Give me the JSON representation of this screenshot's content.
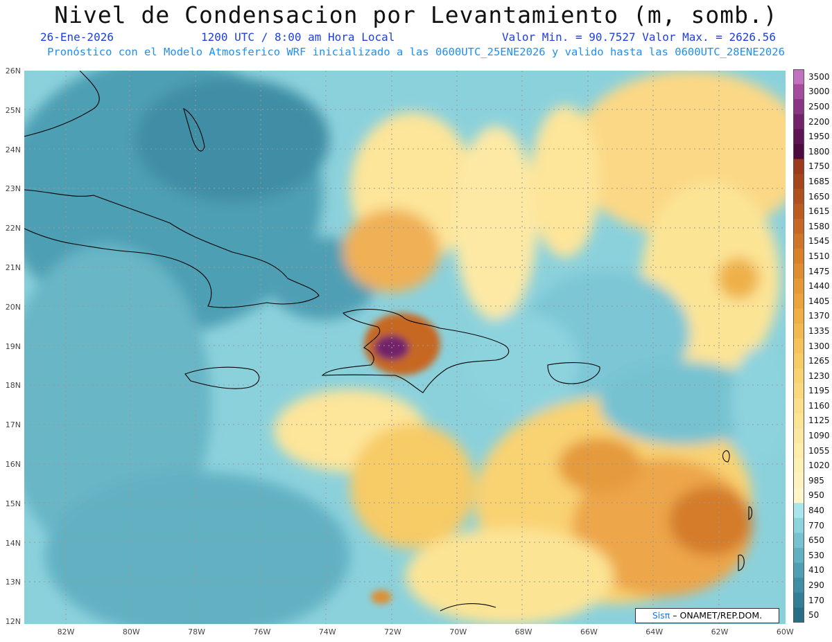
{
  "title": "Nivel de Condensacion por Levantamiento (m, somb.)",
  "date": "26-Ene-2026",
  "time": "1200 UTC / 8:00 am Hora Local",
  "minmax": "Valor Min. = 90.7527  Valor Max. = 2626.56",
  "model_line": "Pronóstico con el Modelo Atmosferico WRF inicializado a las 0600UTC_25ENE2026 y valido hasta las  0600UTC_28ENE2026",
  "lat_labels": [
    "26N",
    "25N",
    "24N",
    "23N",
    "22N",
    "21N",
    "20N",
    "19N",
    "18N",
    "17N",
    "16N",
    "15N",
    "14N",
    "13N",
    "12N"
  ],
  "lon_labels": [
    "82W",
    "80W",
    "78W",
    "76W",
    "74W",
    "72W",
    "70W",
    "68W",
    "66W",
    "64W",
    "62W",
    "60W"
  ],
  "colorbar": {
    "labels": [
      "3500",
      "3000",
      "2500",
      "2200",
      "1950",
      "1800",
      "1750",
      "1685",
      "1650",
      "1615",
      "1580",
      "1545",
      "1510",
      "1475",
      "1440",
      "1405",
      "1370",
      "1335",
      "1300",
      "1265",
      "1230",
      "1195",
      "1160",
      "1125",
      "1090",
      "1055",
      "1020",
      "985",
      "950",
      "840",
      "770",
      "650",
      "530",
      "410",
      "290",
      "170",
      "50"
    ],
    "colors": [
      "#c270c0",
      "#a54d9c",
      "#8a3583",
      "#72236b",
      "#5e1554",
      "#4e0b40",
      "#9b3a1c",
      "#a6441d",
      "#b1501f",
      "#bc5c21",
      "#c66823",
      "#d07426",
      "#d9812a",
      "#e08d2f",
      "#e69835",
      "#eba43c",
      "#efaf45",
      "#f2b94f",
      "#f5c35a",
      "#f7cb66",
      "#f9d272",
      "#fad97e",
      "#fbdf8a",
      "#fce495",
      "#fce8a0",
      "#fdecaa",
      "#fdf0b5",
      "#fef3bf",
      "#fef6c9",
      "#a8e6ec",
      "#8dd3de",
      "#76c2d1",
      "#62b1c3",
      "#4f9fb4",
      "#3f8ea5",
      "#327e96",
      "#286e86"
    ]
  },
  "credit": {
    "logo": "Sisπ",
    "text": "– ONAMET/REP.DOM."
  }
}
